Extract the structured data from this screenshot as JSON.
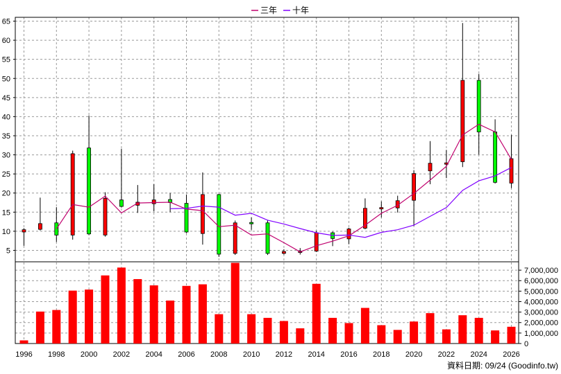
{
  "chart_data": {
    "type": "candlestick+line+bar",
    "legend": [
      "三年",
      "十年"
    ],
    "legend_position": "top-center",
    "source_note": "資料日期: 09/24 (Goodinfo.tw)",
    "x_ticks": [
      "1996",
      "1998",
      "2000",
      "2002",
      "2004",
      "2006",
      "2008",
      "2010",
      "2012",
      "2014",
      "2016",
      "2018",
      "2020",
      "2022",
      "2024",
      "2026"
    ],
    "price_axis": {
      "ticks": [
        5,
        10,
        15,
        20,
        25,
        30,
        35,
        40,
        45,
        50,
        55,
        60,
        65
      ],
      "range": [
        2,
        66
      ],
      "side": "left"
    },
    "volume_axis": {
      "ticks": [
        "0",
        "1,000,000",
        "2,000,000",
        "3,000,000",
        "4,000,000",
        "5,000,000",
        "6,000,000",
        "7,000,000"
      ],
      "range": [
        0,
        7800000
      ],
      "side": "right"
    },
    "grid": true,
    "colors": {
      "up": "#ff0000",
      "down": "#00ff00",
      "ma3": "#c0006e",
      "ma10": "#8000ff",
      "volume": "#ff0000",
      "grid": "#999999"
    },
    "candles": [
      {
        "year": 1996,
        "open": 9.8,
        "close": 10.4,
        "high": 10.8,
        "low": 6.2
      },
      {
        "year": 1997,
        "open": 10.5,
        "close": 12.0,
        "high": 18.8,
        "low": 10.2
      },
      {
        "year": 1998,
        "open": 12.2,
        "close": 9.0,
        "high": 16.3,
        "low": 7.2
      },
      {
        "year": 1999,
        "open": 9.0,
        "close": 30.3,
        "high": 31.1,
        "low": 7.8
      },
      {
        "year": 2000,
        "open": 31.8,
        "close": 9.3,
        "high": 40.3,
        "low": 9.0
      },
      {
        "year": 2001,
        "open": 9.0,
        "close": 18.6,
        "high": 20.2,
        "low": 8.6
      },
      {
        "year": 2002,
        "open": 18.2,
        "close": 16.5,
        "high": 31.6,
        "low": 16.2
      },
      {
        "year": 2003,
        "open": 16.8,
        "close": 17.6,
        "high": 22.1,
        "low": 14.8
      },
      {
        "year": 2004,
        "open": 17.2,
        "close": 18.2,
        "high": 22.3,
        "low": 15.2
      },
      {
        "year": 2005,
        "open": 18.3,
        "close": 17.5,
        "high": 20.0,
        "low": 15.0
      },
      {
        "year": 2006,
        "open": 17.3,
        "close": 9.8,
        "high": 19.6,
        "low": 9.5
      },
      {
        "year": 2007,
        "open": 9.4,
        "close": 19.6,
        "high": 25.4,
        "low": 6.5
      },
      {
        "year": 2008,
        "open": 19.6,
        "close": 4.0,
        "high": 19.8,
        "low": 3.3
      },
      {
        "year": 2009,
        "open": 4.2,
        "close": 12.2,
        "high": 12.8,
        "low": 3.8
      },
      {
        "year": 2010,
        "open": 12.3,
        "close": 12.0,
        "high": 13.6,
        "low": 10.4
      },
      {
        "year": 2011,
        "open": 12.2,
        "close": 4.2,
        "high": 12.8,
        "low": 3.8
      },
      {
        "year": 2012,
        "open": 4.2,
        "close": 4.7,
        "high": 5.3,
        "low": 3.9
      },
      {
        "year": 2013,
        "open": 4.6,
        "close": 4.8,
        "high": 5.6,
        "low": 3.9
      },
      {
        "year": 2014,
        "open": 4.8,
        "close": 9.6,
        "high": 10.1,
        "low": 4.6
      },
      {
        "year": 2015,
        "open": 9.6,
        "close": 8.1,
        "high": 9.9,
        "low": 6.1
      },
      {
        "year": 2016,
        "open": 8.0,
        "close": 10.6,
        "high": 10.9,
        "low": 6.6
      },
      {
        "year": 2017,
        "open": 10.8,
        "close": 16.0,
        "high": 18.6,
        "low": 10.5
      },
      {
        "year": 2018,
        "open": 15.9,
        "close": 16.2,
        "high": 17.8,
        "low": 13.6
      },
      {
        "year": 2019,
        "open": 16.1,
        "close": 18.0,
        "high": 19.3,
        "low": 14.9
      },
      {
        "year": 2020,
        "open": 18.1,
        "close": 25.1,
        "high": 26.0,
        "low": 11.4
      },
      {
        "year": 2021,
        "open": 25.8,
        "close": 27.8,
        "high": 33.6,
        "low": 22.3
      },
      {
        "year": 2022,
        "open": 27.7,
        "close": 27.9,
        "high": 31.3,
        "low": 23.9
      },
      {
        "year": 2023,
        "open": 28.2,
        "close": 49.5,
        "high": 64.5,
        "low": 26.8
      },
      {
        "year": 2024,
        "open": 49.5,
        "close": 36.0,
        "high": 51.2,
        "low": 30.1
      },
      {
        "year": 2025,
        "open": 36.0,
        "close": 22.8,
        "high": 39.3,
        "low": 22.5
      },
      {
        "year": 2026,
        "open": 22.6,
        "close": 29.0,
        "high": 35.2,
        "low": 21.3
      }
    ],
    "series": [
      {
        "name": "三年",
        "x": [
          1998,
          1999,
          2000,
          2001,
          2002,
          2003,
          2004,
          2005,
          2006,
          2007,
          2008,
          2009,
          2010,
          2011,
          2012,
          2013,
          2014,
          2015,
          2016,
          2017,
          2018,
          2019,
          2020,
          2021,
          2022,
          2023,
          2024,
          2025,
          2026
        ],
        "values": [
          10.6,
          17.0,
          16.3,
          19.2,
          14.8,
          17.4,
          17.5,
          17.6,
          15.8,
          15.4,
          11.2,
          11.6,
          9.0,
          9.3,
          7.0,
          4.6,
          6.2,
          7.4,
          8.8,
          11.6,
          14.7,
          16.8,
          19.9,
          23.4,
          27.0,
          35.2,
          38.0,
          36.0,
          28.8
        ]
      },
      {
        "name": "十年",
        "x": [
          2005,
          2006,
          2007,
          2008,
          2009,
          2010,
          2011,
          2012,
          2013,
          2014,
          2015,
          2016,
          2017,
          2018,
          2019,
          2020,
          2021,
          2022,
          2023,
          2024,
          2025,
          2026
        ],
        "values": [
          15.9,
          16.0,
          16.6,
          16.3,
          14.2,
          14.7,
          12.9,
          11.9,
          10.7,
          9.6,
          8.9,
          9.0,
          8.4,
          9.7,
          10.4,
          11.6,
          13.9,
          16.2,
          20.7,
          23.2,
          24.5,
          26.7
        ]
      }
    ],
    "volume": [
      {
        "year": 1996,
        "value": 300000
      },
      {
        "year": 1997,
        "value": 3050000
      },
      {
        "year": 1998,
        "value": 3200000
      },
      {
        "year": 1999,
        "value": 5050000
      },
      {
        "year": 2000,
        "value": 5150000
      },
      {
        "year": 2001,
        "value": 6500000
      },
      {
        "year": 2002,
        "value": 7250000
      },
      {
        "year": 2003,
        "value": 6150000
      },
      {
        "year": 2004,
        "value": 5550000
      },
      {
        "year": 2005,
        "value": 4100000
      },
      {
        "year": 2006,
        "value": 5500000
      },
      {
        "year": 2007,
        "value": 5650000
      },
      {
        "year": 2008,
        "value": 2800000
      },
      {
        "year": 2009,
        "value": 7700000
      },
      {
        "year": 2010,
        "value": 2800000
      },
      {
        "year": 2011,
        "value": 2450000
      },
      {
        "year": 2012,
        "value": 2150000
      },
      {
        "year": 2013,
        "value": 1450000
      },
      {
        "year": 2014,
        "value": 5700000
      },
      {
        "year": 2015,
        "value": 2450000
      },
      {
        "year": 2016,
        "value": 1950000
      },
      {
        "year": 2017,
        "value": 3400000
      },
      {
        "year": 2018,
        "value": 1750000
      },
      {
        "year": 2019,
        "value": 1300000
      },
      {
        "year": 2020,
        "value": 2100000
      },
      {
        "year": 2021,
        "value": 2900000
      },
      {
        "year": 2022,
        "value": 1350000
      },
      {
        "year": 2023,
        "value": 2700000
      },
      {
        "year": 2024,
        "value": 2450000
      },
      {
        "year": 2025,
        "value": 1250000
      },
      {
        "year": 2026,
        "value": 1600000
      }
    ]
  }
}
